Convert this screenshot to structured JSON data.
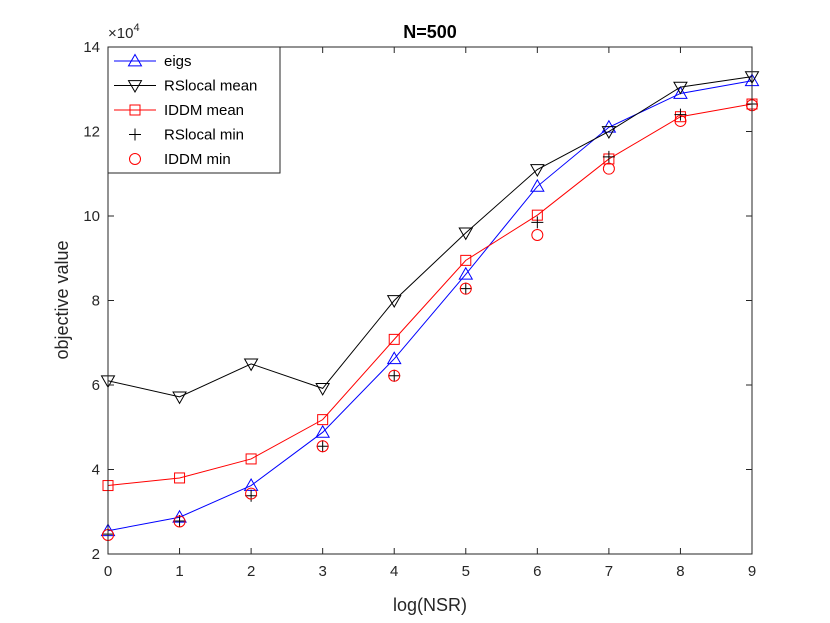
{
  "chart_data": {
    "type": "line",
    "title": "N=500",
    "xlabel": "log(NSR)",
    "ylabel": "objective value",
    "y_exponent_label": "×10",
    "y_exponent": "4",
    "xlim": [
      0,
      9
    ],
    "ylim": [
      2,
      14
    ],
    "x_ticks": [
      0,
      1,
      2,
      3,
      4,
      5,
      6,
      7,
      8,
      9
    ],
    "y_ticks": [
      2,
      4,
      6,
      8,
      10,
      12,
      14
    ],
    "x": [
      0,
      1,
      2,
      3,
      4,
      5,
      6,
      7,
      8,
      9
    ],
    "legend_location": "top-left",
    "series": [
      {
        "name": "eigs",
        "color": "#0000ff",
        "marker": "triangle-up",
        "line": true,
        "values": [
          2.55,
          2.87,
          3.62,
          4.88,
          6.62,
          8.62,
          10.7,
          12.1,
          12.9,
          13.2
        ]
      },
      {
        "name": "RSlocal mean",
        "color": "#000000",
        "marker": "triangle-down",
        "line": true,
        "values": [
          6.1,
          5.72,
          6.5,
          5.92,
          8.0,
          9.6,
          11.1,
          12.0,
          13.05,
          13.3
        ]
      },
      {
        "name": "IDDM mean",
        "color": "#ff0000",
        "marker": "square",
        "line": true,
        "values": [
          3.62,
          3.8,
          4.25,
          5.18,
          7.08,
          8.95,
          10.02,
          11.35,
          12.35,
          12.65
        ]
      },
      {
        "name": "RSlocal min",
        "color": "#000000",
        "marker": "plus",
        "line": false,
        "values": [
          2.47,
          2.78,
          3.38,
          4.55,
          6.22,
          8.28,
          9.85,
          11.4,
          12.4,
          12.65
        ]
      },
      {
        "name": "IDDM min",
        "color": "#ff0000",
        "marker": "circle",
        "line": false,
        "values": [
          2.45,
          2.77,
          3.43,
          4.55,
          6.22,
          8.28,
          9.55,
          11.12,
          12.25,
          12.62
        ]
      }
    ]
  }
}
